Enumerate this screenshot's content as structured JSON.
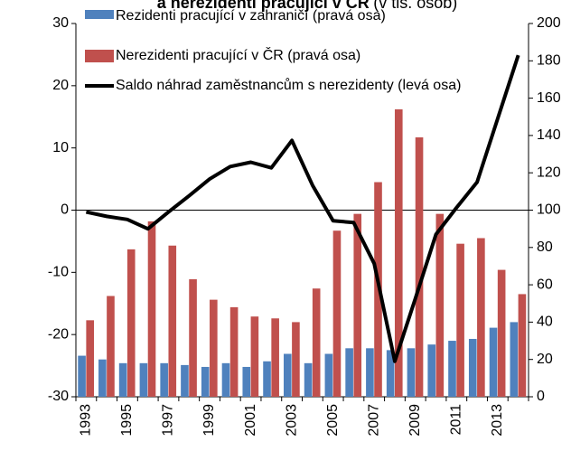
{
  "chart_data": {
    "type": "bar-line",
    "title": "a nerezidenti pracující v ČR",
    "subtitle": "(v tis. osob)",
    "categories": [
      "1993",
      null,
      "1995",
      null,
      "1997",
      null,
      "1999",
      null,
      "2001",
      null,
      "2003",
      null,
      "2005",
      null,
      "2007",
      null,
      "2009",
      null,
      "2011",
      null,
      "2013",
      null
    ],
    "series": [
      {
        "name": "Rezidenti pracující v zahraničí (pravá osa)",
        "color": "#4f81bd",
        "axis": "y2",
        "kind": "bar",
        "values": [
          22,
          20,
          18,
          18,
          18,
          17,
          16,
          18,
          16,
          19,
          23,
          18,
          23,
          26,
          26,
          25,
          26,
          28,
          30,
          31,
          37,
          40
        ]
      },
      {
        "name": "Nerezidenti pracující v ČR (pravá osa)",
        "color": "#c0504d",
        "axis": "y2",
        "kind": "bar",
        "values": [
          41,
          54,
          79,
          94,
          81,
          63,
          52,
          48,
          43,
          42,
          40,
          58,
          89,
          98,
          115,
          154,
          139,
          98,
          82,
          85,
          68,
          55
        ]
      },
      {
        "name": "Saldo náhrad zaměstnancům s nerezidenty (levá osa)",
        "color": "#000000",
        "axis": "y",
        "kind": "line",
        "values": [
          -0.3,
          -1,
          -1.5,
          -3,
          -0.3,
          2.3,
          5,
          7,
          7.7,
          6.8,
          11.2,
          4,
          -1.7,
          -2,
          -8.6,
          -24.3,
          -14.2,
          -3.9,
          0.4,
          4.5,
          14.7,
          24.9
        ]
      }
    ],
    "ylim": [
      -30,
      30
    ],
    "yticks": [
      -30,
      -20,
      -10,
      0,
      10,
      20,
      30
    ],
    "y2lim": [
      0,
      200
    ],
    "y2ticks": [
      0,
      20,
      40,
      60,
      80,
      100,
      120,
      140,
      160,
      180,
      200
    ],
    "grid": false,
    "legend": "top-left"
  }
}
